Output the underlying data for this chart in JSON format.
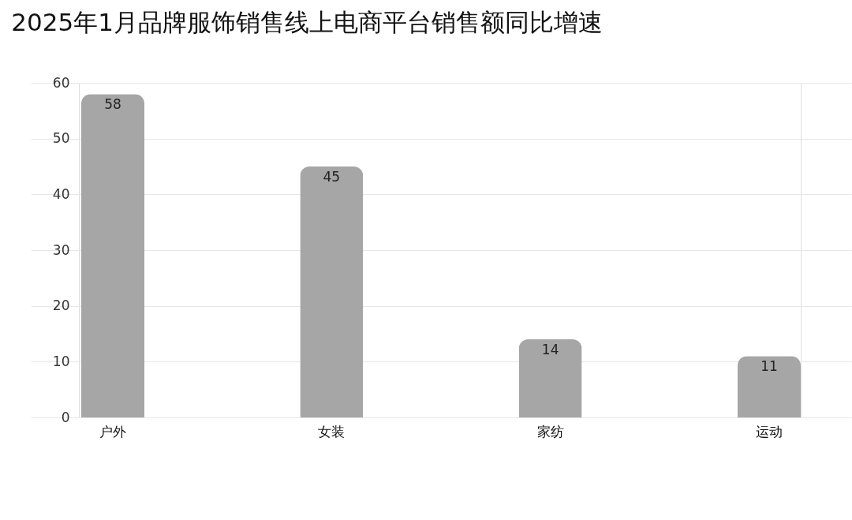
{
  "chart_data": {
    "type": "bar",
    "title": "2025年1月品牌服饰销售线上电商平台销售额同比增速",
    "categories": [
      "户外",
      "女装",
      "家纺",
      "运动"
    ],
    "values": [
      58,
      45,
      14,
      11
    ],
    "color": "#a6a6a6",
    "ylim": [
      0,
      60
    ],
    "yticks": [
      0,
      10,
      20,
      30,
      40,
      50,
      60
    ],
    "grid": "y",
    "data_labels": true
  }
}
